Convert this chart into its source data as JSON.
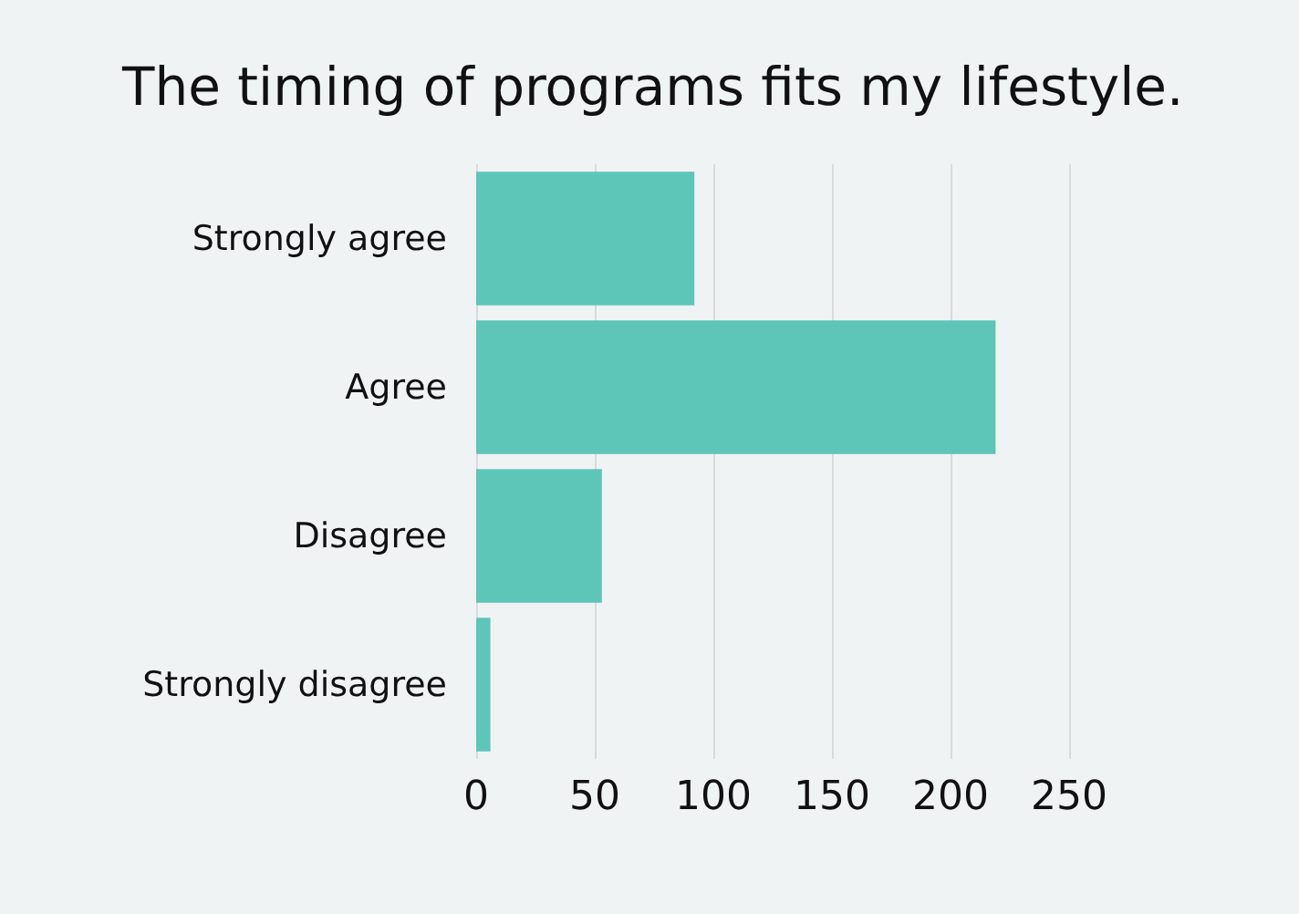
{
  "chart_data": {
    "type": "bar",
    "orientation": "horizontal",
    "title": "The timing of programs fits my lifestyle.",
    "categories": [
      "Strongly agree",
      "Agree",
      "Disagree",
      "Strongly disagree"
    ],
    "values": [
      92,
      219,
      53,
      6
    ],
    "color": "#5ec6b8",
    "xlim": [
      0,
      250
    ],
    "xticks": [
      0,
      50,
      100,
      150,
      200,
      250
    ],
    "grid": "x"
  }
}
